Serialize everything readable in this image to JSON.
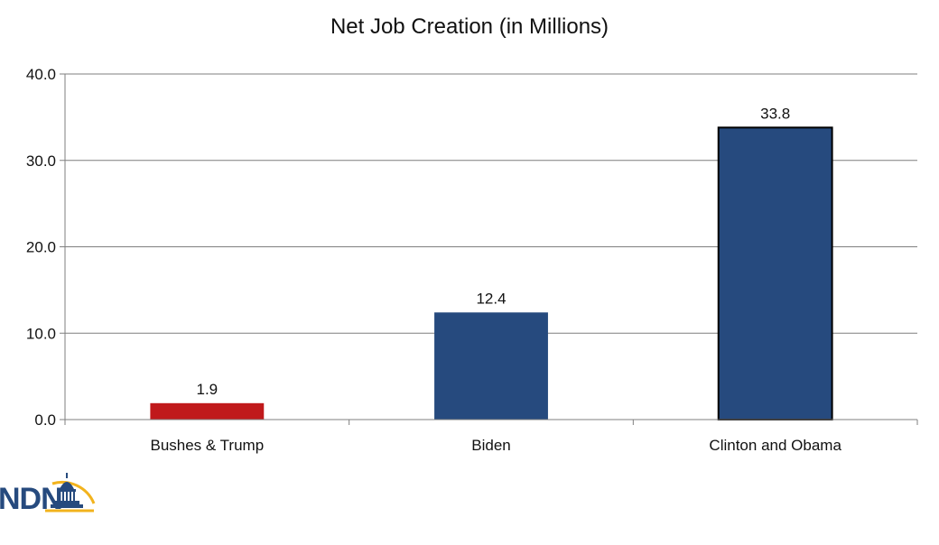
{
  "chart_data": {
    "type": "bar",
    "title": "Net Job Creation (in Millions)",
    "categories": [
      "Bushes & Trump",
      "Biden",
      "Clinton and Obama"
    ],
    "values": [
      1.9,
      12.4,
      33.8
    ],
    "data_labels": [
      "1.9",
      "12.4",
      "33.8"
    ],
    "bar_colors": [
      "#c0191b",
      "#264a7e",
      "#264a7e"
    ],
    "yticks": [
      "0.0",
      "10.0",
      "20.0",
      "30.0",
      "40.0"
    ],
    "ylim": [
      0,
      40
    ],
    "xlabel": "",
    "ylabel": "",
    "grid": true,
    "legend": "none"
  },
  "logo": {
    "text": "NDN",
    "text_color": "#264a7e",
    "accent_color": "#f2b31d"
  }
}
